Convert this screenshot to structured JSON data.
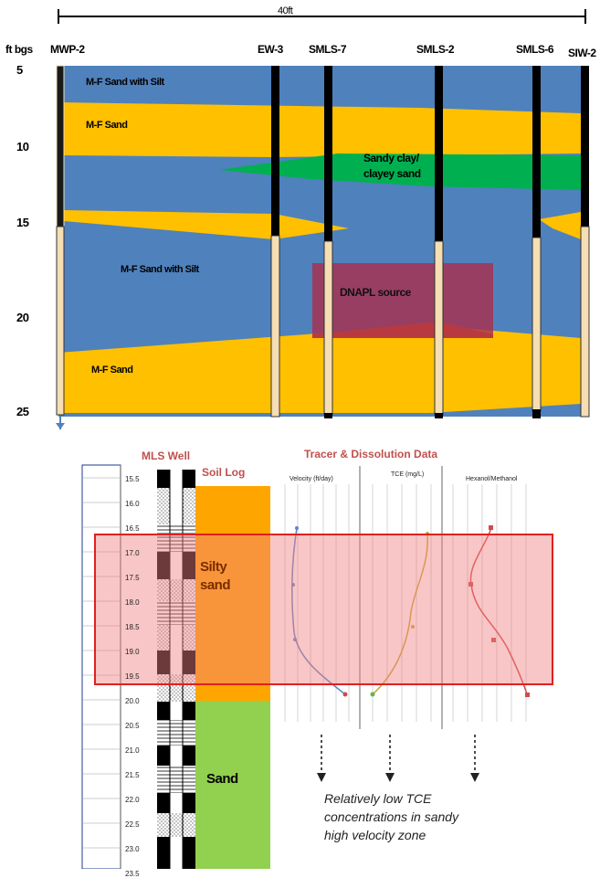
{
  "scale_bar": {
    "label": "40ft"
  },
  "depth_axis": {
    "title": "ft bgs",
    "ticks": [
      "5",
      "10",
      "15",
      "20",
      "25"
    ]
  },
  "wells": [
    "MWP-2",
    "EW-3",
    "SMLS-7",
    "SMLS-2",
    "SMLS-6",
    "SIW-2"
  ],
  "layers": {
    "top_sand_silt": "M-F Sand with Silt",
    "upper_sand": "M-F Sand",
    "clay_line1": "Sandy clay/",
    "clay_line2": "clayey sand",
    "mid_sand_silt": "M-F Sand with Silt",
    "lower_sand": "M-F Sand",
    "dnapl": "DNAPL source"
  },
  "lower": {
    "mls_title": "MLS Well",
    "soil_log_title": "Soil Log",
    "tracer_title": "Tracer & Dissolution Data",
    "depth_ticks": [
      "15.5",
      "16.0",
      "16.5",
      "17.0",
      "17.5",
      "18.0",
      "18.5",
      "19.0",
      "19.5",
      "20.0",
      "20.5",
      "21.0",
      "21.5",
      "22.0",
      "22.5",
      "23.0",
      "23.5"
    ],
    "silty_sand": [
      "Silty",
      "sand"
    ],
    "sand": "Sand",
    "panels": [
      "Velocity (ft/day)",
      "TCE (mg/L)",
      "Hexanol/Methanol"
    ],
    "note": [
      "Relatively low TCE",
      "concentrations in sandy",
      "high velocity zone"
    ]
  },
  "colors": {
    "blue": "#4f81bd",
    "yellow": "#ffc000",
    "green": "#00b050",
    "dnapl": "#a8304e",
    "soil_orange": "#ffa500",
    "soil_green": "#92d050",
    "highlight": "#f4a3a3",
    "highlight_border": "#e02020"
  },
  "icons": [
    "down-arrow-icon"
  ]
}
